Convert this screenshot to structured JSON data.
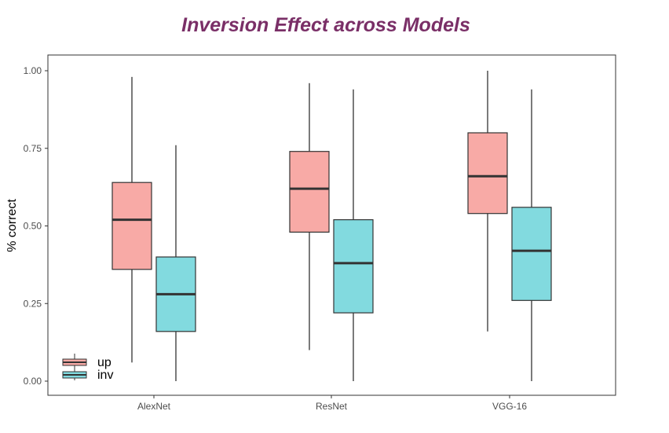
{
  "chart_data": {
    "type": "box",
    "title": "Inversion Effect across Models",
    "xlabel": "",
    "ylabel": "% correct",
    "ylim": [
      0,
      1.02
    ],
    "yticks": [
      0.0,
      0.25,
      0.5,
      0.75,
      1.0
    ],
    "ytick_labels": [
      "0.00",
      "0.25",
      "0.50",
      "0.75",
      "1.00"
    ],
    "categories": [
      "AlexNet",
      "ResNet",
      "VGG-16"
    ],
    "series": [
      {
        "name": "up",
        "color": "#f8aaa6",
        "boxes": [
          {
            "min": 0.06,
            "q1": 0.36,
            "median": 0.52,
            "q3": 0.64,
            "max": 0.98
          },
          {
            "min": 0.1,
            "q1": 0.48,
            "median": 0.62,
            "q3": 0.74,
            "max": 0.96
          },
          {
            "min": 0.16,
            "q1": 0.54,
            "median": 0.66,
            "q3": 0.8,
            "max": 1.0
          }
        ]
      },
      {
        "name": "inv",
        "color": "#82dadf",
        "boxes": [
          {
            "min": 0.0,
            "q1": 0.16,
            "median": 0.28,
            "q3": 0.4,
            "max": 0.76
          },
          {
            "min": 0.0,
            "q1": 0.22,
            "median": 0.38,
            "q3": 0.52,
            "max": 0.94
          },
          {
            "min": 0.0,
            "q1": 0.26,
            "median": 0.42,
            "q3": 0.56,
            "max": 0.94
          }
        ]
      }
    ],
    "grid": false,
    "legend": {
      "position": "bottom-left",
      "entries": [
        "up",
        "inv"
      ]
    }
  }
}
